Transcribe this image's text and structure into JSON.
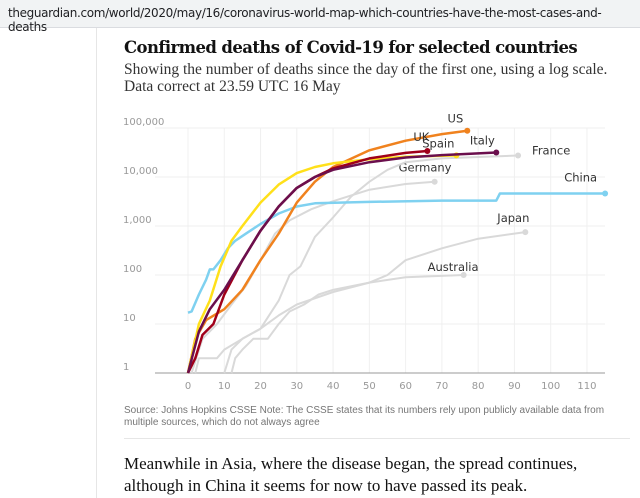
{
  "browser": {
    "url": "theguardian.com/world/2020/may/16/coronavirus-world-map-which-countries-have-the-most-cases-and-deaths"
  },
  "article": {
    "paragraph": "Meanwhile in Asia, where the disease began, the spread continues, although in China it seems for now to have passed its peak."
  },
  "chart_data": {
    "type": "line",
    "title": "Confirmed deaths of Covid-19 for selected countries",
    "subtitle": "Showing the number of deaths since the day of the first one, using a log scale. Data correct at 23.59 UTC 16 May",
    "source": "Source: Johns Hopkins CSSE Note: The CSSE states that its numbers rely upon publicly available data from multiple sources, which do not always agree",
    "xlabel": "",
    "ylabel": "",
    "xlim": [
      -8,
      115
    ],
    "ylim": [
      1,
      100000
    ],
    "yscale": "log",
    "grid": true,
    "x_ticks": [
      "0",
      "10",
      "20",
      "30",
      "40",
      "50",
      "60",
      "70",
      "80",
      "90",
      "100",
      "110"
    ],
    "y_ticks": [
      "1",
      "10",
      "100",
      "1,000",
      "10,000",
      "100,000"
    ],
    "series": [
      {
        "name": "Australia",
        "color": "#d9d9d9",
        "points": [
          [
            12,
            1
          ],
          [
            13,
            2
          ],
          [
            15,
            3
          ],
          [
            18,
            5
          ],
          [
            22,
            5
          ],
          [
            25,
            10
          ],
          [
            28,
            18
          ],
          [
            32,
            25
          ],
          [
            36,
            40
          ],
          [
            40,
            50
          ],
          [
            50,
            70
          ],
          [
            60,
            90
          ],
          [
            76,
            100
          ]
        ]
      },
      {
        "name": "Japan",
        "color": "#d9d9d9",
        "points": [
          [
            2,
            1
          ],
          [
            3,
            2
          ],
          [
            8,
            2
          ],
          [
            10,
            3
          ],
          [
            15,
            5
          ],
          [
            20,
            8
          ],
          [
            25,
            15
          ],
          [
            30,
            25
          ],
          [
            40,
            45
          ],
          [
            50,
            70
          ],
          [
            55,
            100
          ],
          [
            60,
            200
          ],
          [
            70,
            350
          ],
          [
            80,
            550
          ],
          [
            93,
            750
          ]
        ]
      },
      {
        "name": "Germany",
        "color": "#d9d9d9",
        "points": [
          [
            1,
            1
          ],
          [
            4,
            5
          ],
          [
            8,
            10
          ],
          [
            12,
            25
          ],
          [
            16,
            60
          ],
          [
            20,
            200
          ],
          [
            24,
            700
          ],
          [
            28,
            1300
          ],
          [
            34,
            2200
          ],
          [
            40,
            3200
          ],
          [
            50,
            5500
          ],
          [
            60,
            7200
          ],
          [
            68,
            8000
          ]
        ]
      },
      {
        "name": "France",
        "color": "#d9d9d9",
        "points": [
          [
            10,
            1
          ],
          [
            12,
            3
          ],
          [
            15,
            5
          ],
          [
            20,
            8
          ],
          [
            25,
            30
          ],
          [
            28,
            100
          ],
          [
            31,
            150
          ],
          [
            33,
            300
          ],
          [
            35,
            600
          ],
          [
            40,
            1500
          ],
          [
            45,
            4000
          ],
          [
            50,
            8000
          ],
          [
            55,
            14000
          ],
          [
            60,
            20000
          ],
          [
            70,
            24000
          ],
          [
            91,
            27500
          ]
        ]
      },
      {
        "name": "China",
        "color": "#7fd1f0",
        "points": [
          [
            0,
            17
          ],
          [
            1,
            18
          ],
          [
            3,
            40
          ],
          [
            5,
            80
          ],
          [
            6,
            130
          ],
          [
            7,
            130
          ],
          [
            9,
            200
          ],
          [
            11,
            350
          ],
          [
            13,
            500
          ],
          [
            16,
            700
          ],
          [
            20,
            1100
          ],
          [
            25,
            1800
          ],
          [
            30,
            2500
          ],
          [
            35,
            2900
          ],
          [
            50,
            3100
          ],
          [
            70,
            3300
          ],
          [
            85,
            3300
          ],
          [
            86,
            4600
          ],
          [
            115,
            4600
          ]
        ]
      },
      {
        "name": "US",
        "color": "#f0821e",
        "points": [
          [
            0,
            1
          ],
          [
            2,
            5
          ],
          [
            5,
            12
          ],
          [
            10,
            20
          ],
          [
            15,
            50
          ],
          [
            20,
            200
          ],
          [
            25,
            700
          ],
          [
            30,
            3000
          ],
          [
            35,
            8000
          ],
          [
            40,
            16000
          ],
          [
            50,
            35000
          ],
          [
            60,
            55000
          ],
          [
            70,
            75000
          ],
          [
            77,
            88000
          ]
        ]
      },
      {
        "name": "Spain",
        "color": "#ffe01a",
        "points": [
          [
            0,
            1
          ],
          [
            3,
            10
          ],
          [
            6,
            30
          ],
          [
            9,
            150
          ],
          [
            12,
            500
          ],
          [
            15,
            1000
          ],
          [
            20,
            3000
          ],
          [
            25,
            7000
          ],
          [
            30,
            12000
          ],
          [
            35,
            16000
          ],
          [
            40,
            19000
          ],
          [
            50,
            23000
          ],
          [
            60,
            26000
          ],
          [
            74,
            27600
          ]
        ]
      },
      {
        "name": "UK",
        "color": "#a0001a",
        "points": [
          [
            0,
            1
          ],
          [
            2,
            2
          ],
          [
            4,
            6
          ],
          [
            7,
            10
          ],
          [
            10,
            40
          ],
          [
            15,
            200
          ],
          [
            20,
            800
          ],
          [
            25,
            2500
          ],
          [
            30,
            6000
          ],
          [
            35,
            10000
          ],
          [
            40,
            15000
          ],
          [
            50,
            24000
          ],
          [
            60,
            31000
          ],
          [
            66,
            34000
          ]
        ]
      },
      {
        "name": "Italy",
        "color": "#6b0f4d",
        "points": [
          [
            0,
            1
          ],
          [
            3,
            7
          ],
          [
            6,
            20
          ],
          [
            10,
            50
          ],
          [
            15,
            200
          ],
          [
            20,
            800
          ],
          [
            25,
            2500
          ],
          [
            30,
            6000
          ],
          [
            35,
            10000
          ],
          [
            40,
            14000
          ],
          [
            50,
            20000
          ],
          [
            60,
            25000
          ],
          [
            70,
            28000
          ],
          [
            85,
            31600
          ]
        ]
      }
    ]
  }
}
